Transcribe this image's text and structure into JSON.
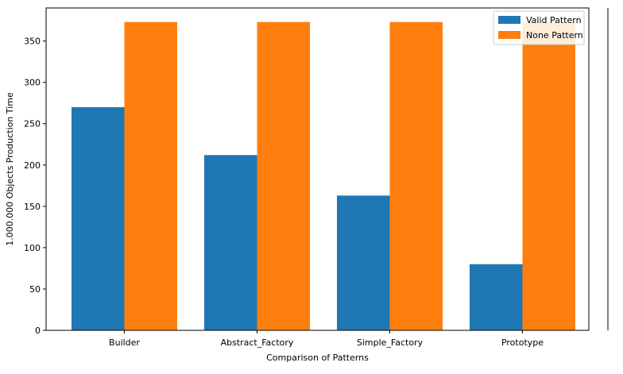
{
  "chart_data": {
    "type": "bar",
    "title": "",
    "xlabel": "Comparison of Patterns",
    "ylabel": "1.000.000 Objects Production Time",
    "categories": [
      "Builder",
      "Abstract_Factory",
      "Simple_Factory",
      "Prototype"
    ],
    "series": [
      {
        "name": "Valid Pattern",
        "color": "#1f77b4",
        "values": [
          270,
          212,
          163,
          80
        ]
      },
      {
        "name": "None Pattern",
        "color": "#ff7f0e",
        "values": [
          373,
          373,
          373,
          373
        ]
      }
    ],
    "yticks": [
      0,
      50,
      100,
      150,
      200,
      250,
      300,
      350
    ],
    "ylim": [
      0,
      390
    ],
    "grid": false,
    "legend": "top-right"
  }
}
